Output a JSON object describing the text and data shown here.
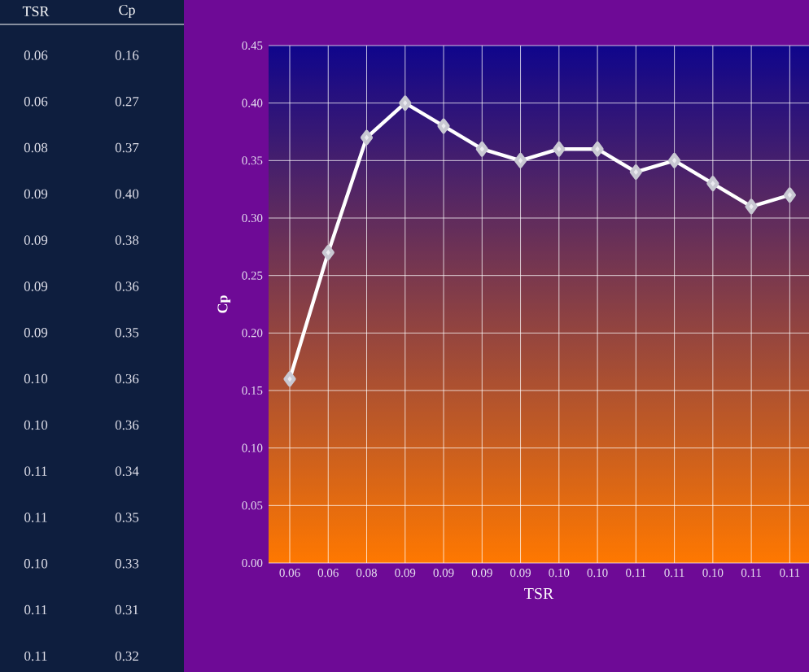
{
  "chart_data": {
    "type": "line",
    "xlabel": "TSR",
    "ylabel": "Cp",
    "categories": [
      "0.06",
      "0.06",
      "0.08",
      "0.09",
      "0.09",
      "0.09",
      "0.09",
      "0.10",
      "0.10",
      "0.11",
      "0.11",
      "0.10",
      "0.11",
      "0.11"
    ],
    "values": [
      0.16,
      0.27,
      0.37,
      0.4,
      0.38,
      0.36,
      0.35,
      0.36,
      0.36,
      0.34,
      0.35,
      0.33,
      0.31,
      0.32
    ],
    "annotations": [
      "TSR",
      "Cp",
      "0.16",
      "0.27",
      "0.37",
      "0.40",
      "0.38",
      "0.36",
      "0.35",
      "0.36",
      "0.36",
      "0.34",
      "0.35",
      "0.33",
      "0.31",
      "0.32"
    ],
    "color": "#ffffff",
    "ylim": [
      0,
      0.45
    ],
    "yticks": [
      {
        "value": 0,
        "label": "0.00"
      },
      {
        "value": 0.05,
        "label": "0.05"
      },
      {
        "value": 0.1,
        "label": "0.10"
      },
      {
        "value": 0.15,
        "label": "0.15"
      },
      {
        "value": 0.2,
        "label": "0.20"
      },
      {
        "value": 0.25,
        "label": "0.25"
      },
      {
        "value": 0.3,
        "label": "0.30"
      },
      {
        "value": 0.35,
        "label": "0.35"
      },
      {
        "value": 0.4,
        "label": "0.40"
      },
      {
        "value": 0.45,
        "label": "0.45"
      }
    ],
    "grid": true,
    "marker": "diamond",
    "line_style": "solid"
  }
}
